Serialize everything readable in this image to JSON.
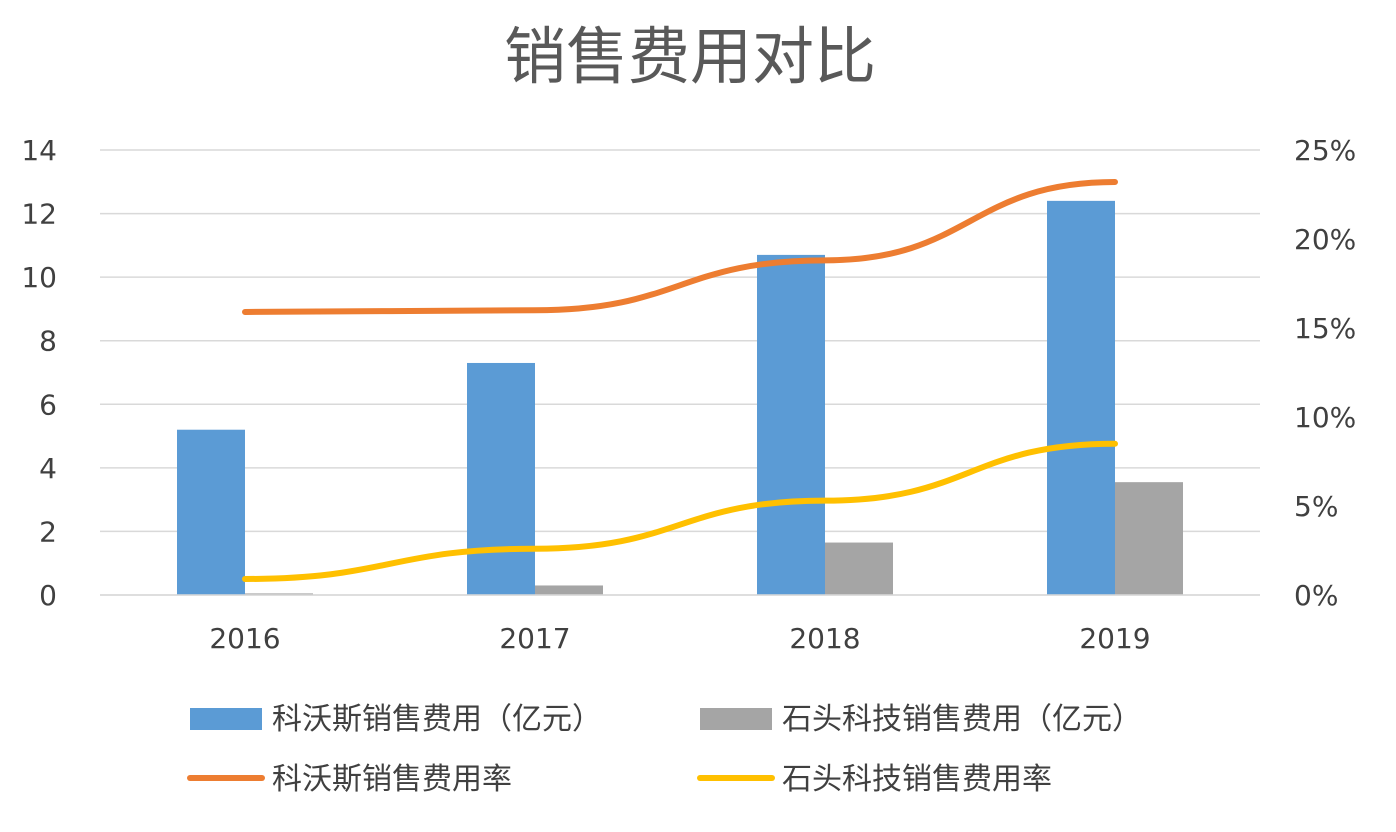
{
  "chart_data": {
    "type": "bar",
    "title": "销售费用对比",
    "categories": [
      "2016",
      "2017",
      "2018",
      "2019"
    ],
    "y_left": {
      "ylim": [
        0,
        14
      ],
      "ticks": [
        "0",
        "2",
        "4",
        "6",
        "8",
        "10",
        "12",
        "14"
      ]
    },
    "y_right": {
      "ylim": [
        0,
        0.25
      ],
      "ticks": [
        "0%",
        "5%",
        "10%",
        "15%",
        "20%",
        "25%"
      ]
    },
    "grid": true,
    "legend_position": "bottom",
    "series": [
      {
        "name": "科沃斯销售费用（亿元）",
        "kind": "bar",
        "axis": "left",
        "color": "#5b9bd5",
        "values": [
          5.2,
          7.3,
          10.7,
          12.4
        ]
      },
      {
        "name": "石头科技销售费用（亿元）",
        "kind": "bar",
        "axis": "left",
        "color": "#a5a5a5",
        "values": [
          0.05,
          0.3,
          1.65,
          3.55
        ]
      },
      {
        "name": "科沃斯销售费用率",
        "kind": "line",
        "axis": "right",
        "color": "#ed7d31",
        "values": [
          0.159,
          0.16,
          0.188,
          0.232
        ]
      },
      {
        "name": "石头科技销售费用率",
        "kind": "line",
        "axis": "right",
        "color": "#ffc000",
        "values": [
          0.009,
          0.026,
          0.053,
          0.085
        ]
      }
    ]
  }
}
